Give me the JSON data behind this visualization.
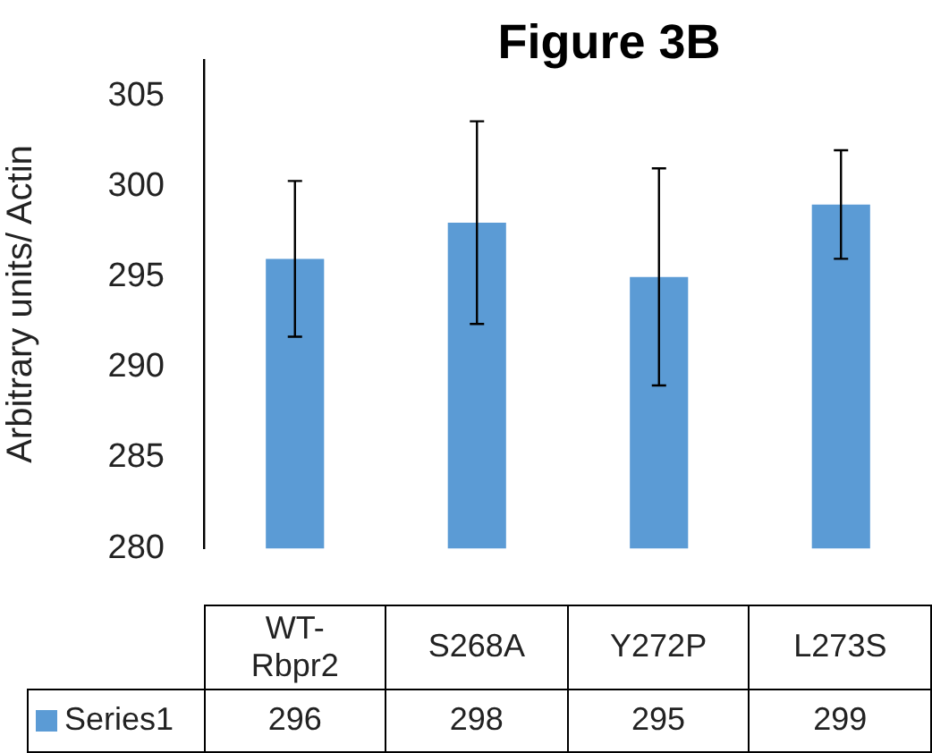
{
  "chart_data": {
    "type": "bar",
    "title": "Figure 3B",
    "ylabel": "Arbitrary units/ Actin",
    "categories": [
      "WT-Rbpr2",
      "S268A",
      "Y272P",
      "L273S"
    ],
    "series": [
      {
        "name": "Series1",
        "color": "#5b9bd5",
        "values": [
          296,
          298,
          295,
          299
        ],
        "errors": [
          4.3,
          5.6,
          6,
          3
        ]
      }
    ],
    "ylim": [
      280,
      307
    ],
    "yticks": [
      280,
      285,
      290,
      295,
      300,
      305
    ],
    "grid": false,
    "legend": "bottom",
    "data_labels": true
  }
}
